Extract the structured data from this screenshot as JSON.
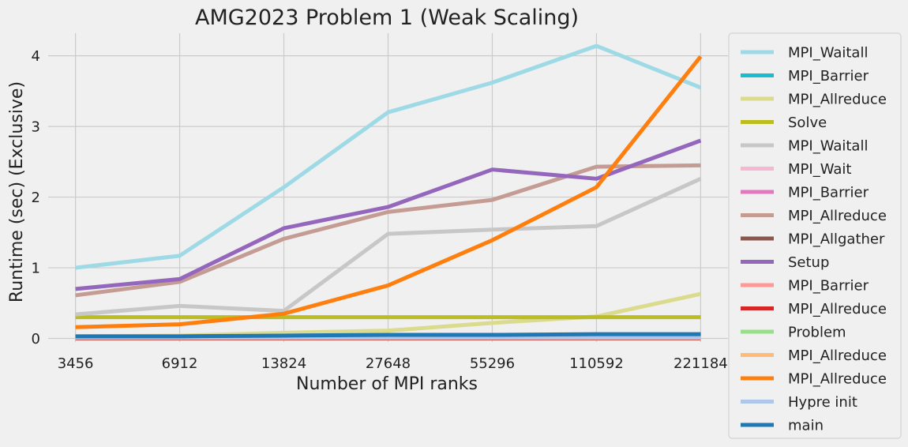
{
  "chart_data": {
    "type": "line",
    "title": "AMG2023 Problem 1 (Weak Scaling)",
    "xlabel": "Number of MPI ranks",
    "ylabel": "Runtime (sec) (Exclusive)",
    "categories": [
      "3456",
      "6912",
      "13824",
      "27648",
      "55296",
      "110592",
      "221184"
    ],
    "ylim": [
      -0.05,
      4.32
    ],
    "yticks": [
      "0",
      "1",
      "2",
      "3",
      "4"
    ],
    "grid": true,
    "legend_position": "outside-right",
    "series": [
      {
        "name": "MPI_Waitall",
        "color": "#9edae5",
        "values": [
          1.0,
          1.17,
          2.14,
          3.2,
          3.62,
          4.14,
          3.55
        ]
      },
      {
        "name": "MPI_Barrier",
        "color": "#17becf",
        "values": [
          0.0,
          0.0,
          0.0,
          0.0,
          0.0,
          0.0,
          0.0
        ]
      },
      {
        "name": "MPI_Allreduce",
        "color": "#dbdb8d",
        "values": [
          0.03,
          0.04,
          0.08,
          0.11,
          0.22,
          0.31,
          0.63
        ]
      },
      {
        "name": "Solve",
        "color": "#bcbd22",
        "values": [
          0.3,
          0.3,
          0.3,
          0.3,
          0.3,
          0.3,
          0.3
        ]
      },
      {
        "name": "MPI_Waitall",
        "color": "#c7c7c7",
        "values": [
          0.34,
          0.46,
          0.39,
          1.48,
          1.54,
          1.59,
          2.26
        ]
      },
      {
        "name": "MPI_Wait",
        "color": "#f7b6d2",
        "values": [
          0.01,
          0.01,
          0.01,
          0.01,
          0.01,
          0.01,
          0.01
        ]
      },
      {
        "name": "MPI_Barrier",
        "color": "#e377c2",
        "values": [
          0.0,
          0.0,
          0.0,
          0.0,
          0.0,
          0.0,
          0.0
        ]
      },
      {
        "name": "MPI_Allreduce",
        "color": "#c49c94",
        "values": [
          0.61,
          0.8,
          1.41,
          1.79,
          1.96,
          2.43,
          2.45
        ]
      },
      {
        "name": "MPI_Allgather",
        "color": "#8c564b",
        "values": [
          0.02,
          0.02,
          0.03,
          0.04,
          0.04,
          0.05,
          0.05
        ]
      },
      {
        "name": "Setup",
        "color": "#9467bd",
        "values": [
          0.7,
          0.84,
          1.56,
          1.86,
          2.39,
          2.26,
          2.8
        ]
      },
      {
        "name": "MPI_Barrier",
        "color": "#ff9896",
        "values": [
          0.0,
          0.0,
          0.0,
          0.0,
          0.0,
          0.0,
          0.0
        ]
      },
      {
        "name": "MPI_Allreduce",
        "color": "#d62728",
        "values": [
          0.0,
          0.0,
          0.0,
          0.0,
          0.0,
          0.0,
          0.0
        ]
      },
      {
        "name": "Problem",
        "color": "#98df8a",
        "values": [
          0.01,
          0.01,
          0.01,
          0.01,
          0.01,
          0.01,
          0.01
        ]
      },
      {
        "name": "MPI_Allreduce",
        "color": "#ffbb78",
        "values": [
          0.01,
          0.01,
          0.01,
          0.01,
          0.01,
          0.01,
          0.01
        ]
      },
      {
        "name": "MPI_Allreduce",
        "color": "#ff7f0e",
        "values": [
          0.16,
          0.2,
          0.35,
          0.75,
          1.39,
          2.14,
          3.99
        ]
      },
      {
        "name": "Hypre init",
        "color": "#aec7e8",
        "values": [
          0.01,
          0.01,
          0.01,
          0.01,
          0.01,
          0.01,
          0.01
        ]
      },
      {
        "name": "main",
        "color": "#1f77b4",
        "values": [
          0.03,
          0.03,
          0.04,
          0.05,
          0.05,
          0.06,
          0.06
        ]
      }
    ]
  }
}
